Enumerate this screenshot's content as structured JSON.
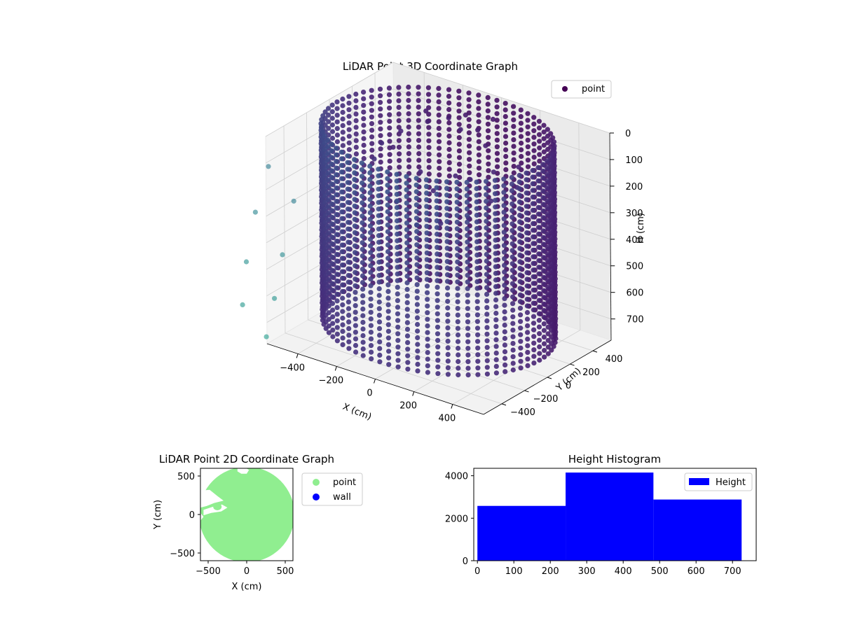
{
  "chart_data": [
    {
      "type": "scatter3d",
      "title": "LiDAR Point 3D Coordinate Graph",
      "xlabel": "X (cm)",
      "ylabel": "Y (cm)",
      "zlabel": "H (cm)",
      "xticks": [
        -400,
        -200,
        0,
        200,
        400
      ],
      "yticks": [
        400,
        200,
        0,
        -200,
        -400
      ],
      "zticks": [
        0,
        100,
        200,
        300,
        400,
        500,
        600,
        700
      ],
      "xlim": [
        -560,
        560
      ],
      "ylim": [
        -560,
        560
      ],
      "zlim": [
        0,
        780
      ],
      "z_inverted": true,
      "grid": true,
      "legend_position": "top-right",
      "series": [
        {
          "name": "point",
          "color": "#440154",
          "wall_radius_cm": 520,
          "wall_height_range_cm": [
            0,
            725
          ],
          "wall_angles_deg": [
            0,
            5,
            10,
            15,
            20,
            25,
            30,
            35,
            40,
            45,
            50,
            55,
            60,
            65,
            70,
            75,
            80,
            85,
            90,
            95,
            100,
            105,
            110,
            115,
            120,
            125,
            130,
            135,
            140,
            145,
            150,
            155,
            160,
            165,
            170,
            175,
            180,
            185,
            190,
            195,
            200,
            205,
            210,
            215,
            220,
            225,
            230,
            235,
            240,
            245,
            250,
            255,
            260,
            265,
            270,
            275,
            280,
            285,
            290,
            295,
            300,
            305,
            310,
            315,
            320,
            325,
            330,
            335,
            340,
            345,
            350,
            355
          ],
          "interior_points": [
            {
              "x": -200,
              "y": 250,
              "h": 60
            },
            {
              "x": -120,
              "y": 300,
              "h": 40
            },
            {
              "x": -50,
              "y": 330,
              "h": 20
            },
            {
              "x": 30,
              "y": 300,
              "h": 50
            },
            {
              "x": 100,
              "y": 250,
              "h": 80
            },
            {
              "x": -280,
              "y": 150,
              "h": 90
            },
            {
              "x": -320,
              "y": 50,
              "h": 120
            },
            {
              "x": -300,
              "y": -50,
              "h": 150
            },
            {
              "x": -150,
              "y": 100,
              "h": 200
            },
            {
              "x": -60,
              "y": 60,
              "h": 240
            },
            {
              "x": 20,
              "y": 120,
              "h": 180
            },
            {
              "x": 120,
              "y": 80,
              "h": 160
            },
            {
              "x": 200,
              "y": 150,
              "h": 130
            },
            {
              "x": 250,
              "y": 40,
              "h": 200
            },
            {
              "x": 180,
              "y": -40,
              "h": 260
            },
            {
              "x": 60,
              "y": -80,
              "h": 300
            },
            {
              "x": -40,
              "y": -120,
              "h": 320
            },
            {
              "x": -180,
              "y": -60,
              "h": 280
            },
            {
              "x": 300,
              "y": 200,
              "h": 100
            },
            {
              "x": 350,
              "y": 100,
              "h": 140
            },
            {
              "x": -350,
              "y": 200,
              "h": 180
            },
            {
              "x": 0,
              "y": 200,
              "h": 30
            },
            {
              "x": 80,
              "y": 350,
              "h": 10
            },
            {
              "x": -250,
              "y": 320,
              "h": 50
            }
          ],
          "outlier_points": [
            {
              "x": -760,
              "y": -200,
              "h": 250
            },
            {
              "x": -740,
              "y": -350,
              "h": 380
            },
            {
              "x": -700,
              "y": -500,
              "h": 520
            },
            {
              "x": -650,
              "y": -620,
              "h": 640
            },
            {
              "x": -600,
              "y": -250,
              "h": 330
            },
            {
              "x": -560,
              "y": -420,
              "h": 480
            },
            {
              "x": -520,
              "y": -560,
              "h": 600
            },
            {
              "x": -480,
              "y": -700,
              "h": 700
            }
          ]
        }
      ]
    },
    {
      "type": "scatter",
      "title": "LiDAR Point 2D Coordinate Graph",
      "xlabel": "X (cm)",
      "ylabel": "Y (cm)",
      "xticks": [
        -500,
        0,
        500
      ],
      "yticks": [
        500,
        0,
        -500
      ],
      "xlim": [
        -600,
        600
      ],
      "ylim": [
        -600,
        600
      ],
      "legend_position": "outside-right",
      "series": [
        {
          "name": "point",
          "color": "#90ee90",
          "fill_radius_cm": 620
        },
        {
          "name": "wall",
          "color": "#0000ff"
        }
      ]
    },
    {
      "type": "histogram",
      "title": "Height Histogram",
      "xticks": [
        0,
        100,
        200,
        300,
        400,
        500,
        600,
        700
      ],
      "yticks": [
        0,
        2000,
        4000
      ],
      "xlim": [
        -10,
        765
      ],
      "ylim": [
        0,
        4350
      ],
      "legend_position": "top-right",
      "series": [
        {
          "name": "Height",
          "color": "#0000ff"
        }
      ],
      "bins": [
        {
          "start": 0,
          "end": 242,
          "count": 2580
        },
        {
          "start": 242,
          "end": 483,
          "count": 4150
        },
        {
          "start": 483,
          "end": 725,
          "count": 2880
        }
      ]
    }
  ]
}
